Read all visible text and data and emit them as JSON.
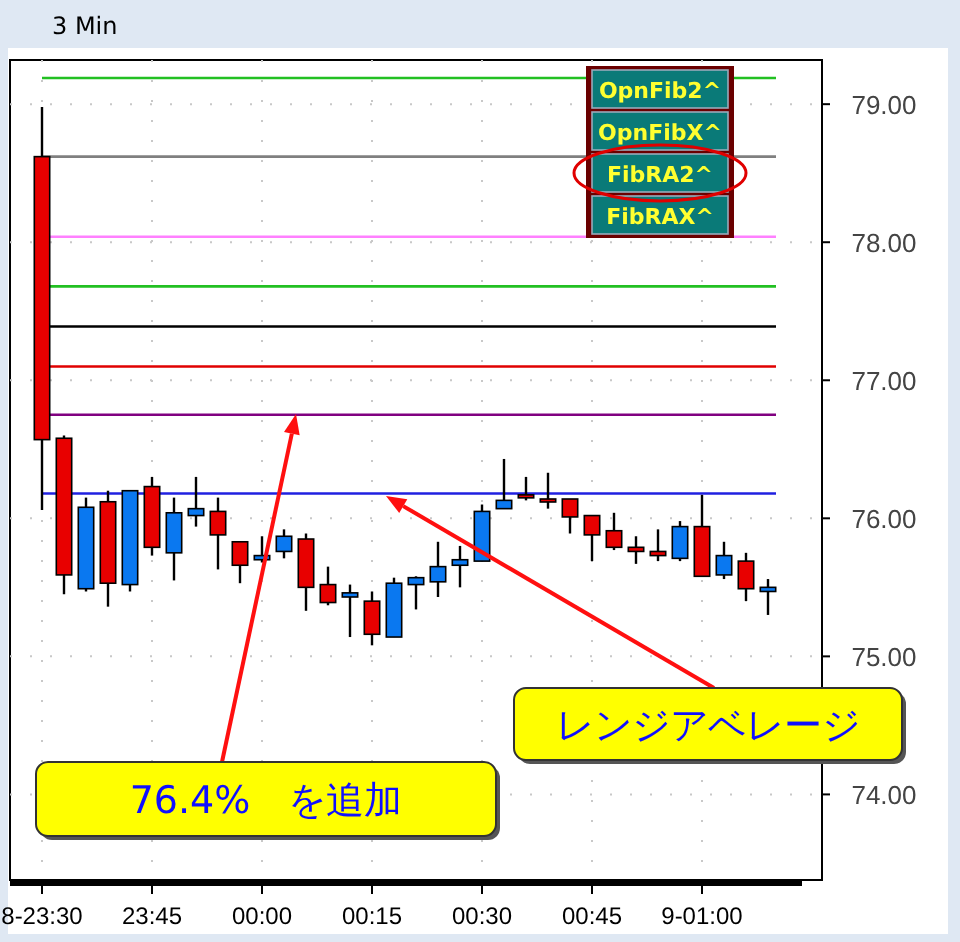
{
  "chart_data": {
    "type": "candlestick",
    "title": "3 Min",
    "categories": [
      "8-23:30",
      null,
      null,
      null,
      null,
      "23:45",
      null,
      null,
      null,
      null,
      "00:00",
      null,
      null,
      null,
      null,
      "00:15",
      null,
      null,
      null,
      null,
      "00:30",
      null,
      null,
      null,
      null,
      "00:45",
      null,
      null,
      null,
      null,
      "9-01:00",
      null,
      null,
      null
    ],
    "ohlc": [
      [
        78.62,
        78.98,
        76.06,
        76.57
      ],
      [
        76.58,
        76.6,
        75.45,
        75.59
      ],
      [
        75.49,
        76.15,
        75.47,
        76.08
      ],
      [
        76.12,
        76.2,
        75.36,
        75.53
      ],
      [
        75.52,
        76.2,
        75.47,
        76.2
      ],
      [
        76.23,
        76.3,
        75.73,
        75.79
      ],
      [
        75.75,
        76.15,
        75.55,
        76.04
      ],
      [
        76.02,
        76.3,
        75.94,
        76.07
      ],
      [
        76.05,
        76.15,
        75.63,
        75.88
      ],
      [
        75.83,
        75.83,
        75.53,
        75.66
      ],
      [
        75.7,
        75.87,
        75.68,
        75.73
      ],
      [
        75.76,
        75.92,
        75.71,
        75.87
      ],
      [
        75.85,
        75.89,
        75.33,
        75.5
      ],
      [
        75.52,
        75.65,
        75.37,
        75.39
      ],
      [
        75.43,
        75.52,
        75.14,
        75.46
      ],
      [
        75.4,
        75.47,
        75.08,
        75.16
      ],
      [
        75.14,
        75.57,
        75.14,
        75.53
      ],
      [
        75.52,
        75.58,
        75.34,
        75.57
      ],
      [
        75.54,
        75.83,
        75.43,
        75.65
      ],
      [
        75.66,
        75.8,
        75.5,
        75.7
      ],
      [
        75.69,
        76.1,
        75.69,
        76.05
      ],
      [
        76.07,
        76.43,
        76.07,
        76.13
      ],
      [
        76.17,
        76.3,
        76.13,
        76.16
      ],
      [
        76.14,
        76.33,
        76.07,
        76.12
      ],
      [
        76.14,
        76.14,
        75.89,
        76.01
      ],
      [
        76.02,
        76.02,
        75.69,
        75.88
      ],
      [
        75.91,
        76.04,
        75.77,
        75.79
      ],
      [
        75.79,
        75.87,
        75.67,
        75.76
      ],
      [
        75.76,
        75.92,
        75.69,
        75.73
      ],
      [
        75.71,
        75.98,
        75.69,
        75.94
      ],
      [
        75.94,
        76.17,
        75.58,
        75.58
      ],
      [
        75.59,
        75.83,
        75.56,
        75.73
      ],
      [
        75.69,
        75.75,
        75.4,
        75.49
      ],
      [
        75.47,
        75.56,
        75.3,
        75.5
      ]
    ],
    "colors": [
      "#e80000",
      "#e80000",
      "#0a78f0",
      "#e80000",
      "#0a78f0",
      "#e80000",
      "#0a78f0",
      "#0a78f0",
      "#e80000",
      "#e80000",
      "#0a78f0",
      "#0a78f0",
      "#e80000",
      "#e80000",
      "#0a78f0",
      "#e80000",
      "#0a78f0",
      "#0a78f0",
      "#0a78f0",
      "#0a78f0",
      "#0a78f0",
      "#0a78f0",
      "#e80000",
      "#e80000",
      "#e80000",
      "#e80000",
      "#e80000",
      "#e80000",
      "#e80000",
      "#0a78f0",
      "#e80000",
      "#0a78f0",
      "#e80000",
      "#0a78f0"
    ],
    "ylim": [
      73.38,
      79.32
    ],
    "yticks": [
      {
        "value": 74,
        "label": "74.00"
      },
      {
        "value": 75,
        "label": "75.00"
      },
      {
        "value": 76,
        "label": "76.00"
      },
      {
        "value": 77,
        "label": "77.00"
      },
      {
        "value": 78,
        "label": "78.00"
      },
      {
        "value": 79,
        "label": "79.00"
      }
    ],
    "grid": true,
    "ref_lines": [
      {
        "axis": "y",
        "value": 79.19,
        "color": "#22c022"
      },
      {
        "axis": "y",
        "value": 78.62,
        "color": "#808080"
      },
      {
        "axis": "y",
        "value": 78.04,
        "color": "#ff80ff"
      },
      {
        "axis": "y",
        "value": 77.68,
        "color": "#22c022"
      },
      {
        "axis": "y",
        "value": 77.39,
        "color": "#000000"
      },
      {
        "axis": "y",
        "value": 77.1,
        "color": "#e00000"
      },
      {
        "axis": "y",
        "value": 76.75,
        "color": "#800080"
      },
      {
        "axis": "y",
        "value": 76.18,
        "color": "#2020e0"
      }
    ],
    "annotations": [
      "76.4%　を追加",
      "レンジアベレージ",
      "OpnFib2^",
      "OpnFibX^",
      "FibRA2^",
      "FibRAX^"
    ]
  }
}
